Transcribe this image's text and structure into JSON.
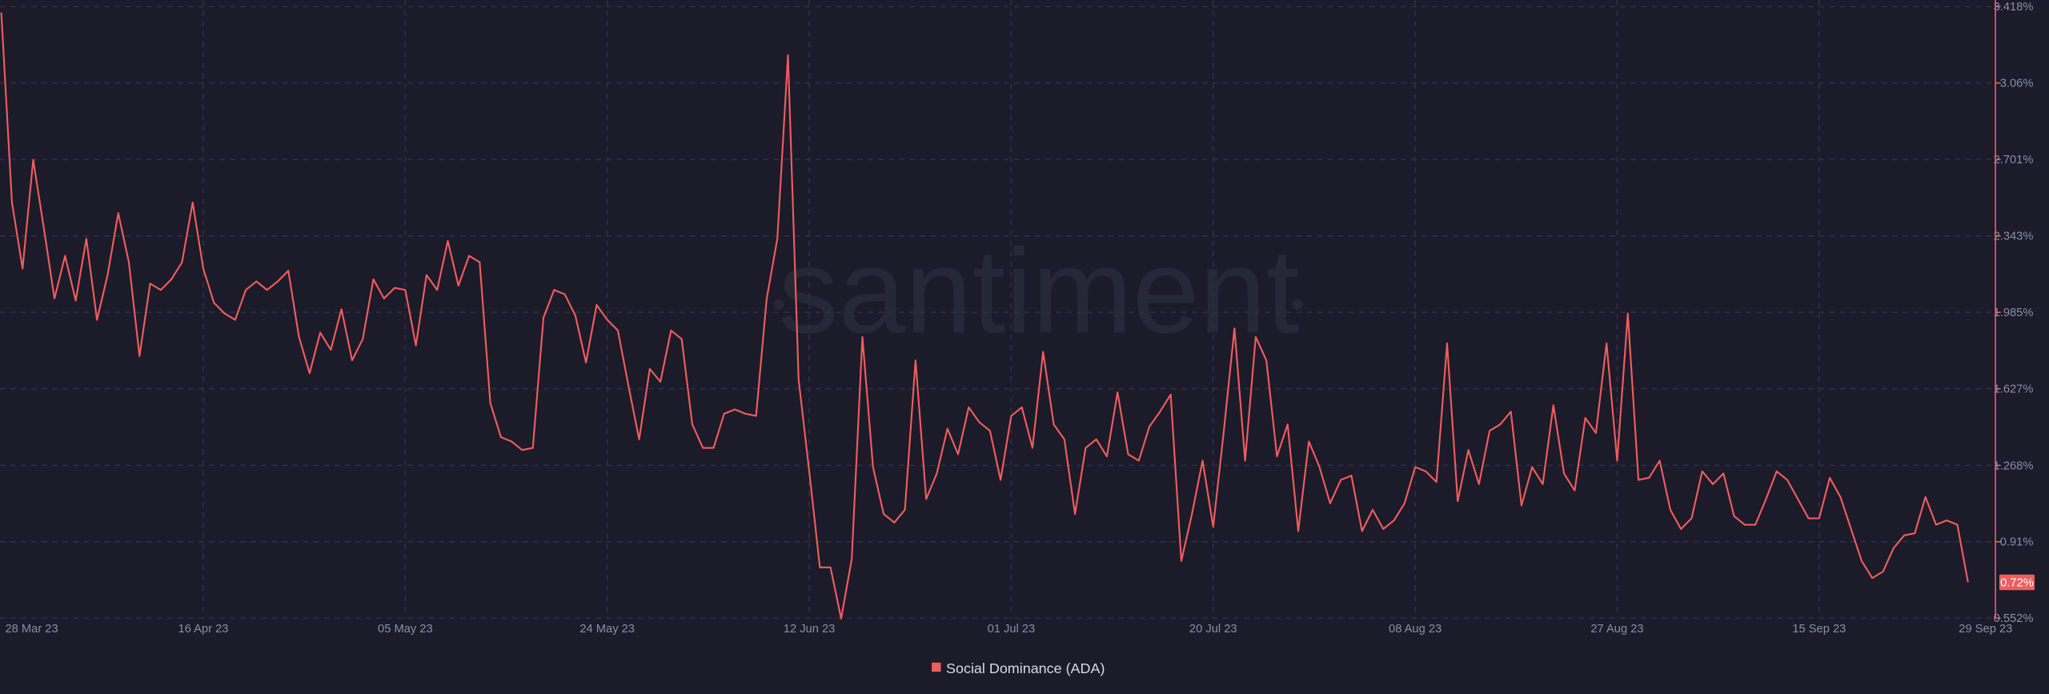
{
  "chart_data": {
    "type": "line",
    "watermark": "santiment",
    "xlim": [
      "28 Mar 23",
      "29 Sep 23"
    ],
    "xticks": [
      "28 Mar 23",
      "16 Apr 23",
      "05 May 23",
      "24 May 23",
      "12 Jun 23",
      "01 Jul 23",
      "20 Jul 23",
      "08 Aug 23",
      "27 Aug 23",
      "15 Sep 23",
      "29 Sep 23"
    ],
    "ylim": [
      0.552,
      3.418
    ],
    "yticks": [
      {
        "value": 0.552,
        "label": "0.552%"
      },
      {
        "value": 0.91,
        "label": "0.91%"
      },
      {
        "value": 1.268,
        "label": "1.268%"
      },
      {
        "value": 1.627,
        "label": "1.627%"
      },
      {
        "value": 1.985,
        "label": "1.985%"
      },
      {
        "value": 2.343,
        "label": "2.343%"
      },
      {
        "value": 2.701,
        "label": "2.701%"
      },
      {
        "value": 3.06,
        "label": "3.06%"
      },
      {
        "value": 3.418,
        "label": "3.418%"
      }
    ],
    "grid": true,
    "legend": "bottom",
    "current_value_label": "0.72%",
    "series": [
      {
        "name": "Social Dominance (ADA)",
        "color": "#f25c5c",
        "values": [
          3.39,
          2.5,
          2.19,
          2.7,
          2.38,
          2.05,
          2.25,
          2.04,
          2.33,
          1.95,
          2.16,
          2.45,
          2.22,
          1.78,
          2.12,
          2.09,
          2.14,
          2.22,
          2.5,
          2.19,
          2.03,
          1.98,
          1.95,
          2.09,
          2.13,
          2.09,
          2.13,
          2.18,
          1.87,
          1.7,
          1.89,
          1.81,
          2.0,
          1.76,
          1.86,
          2.14,
          2.05,
          2.1,
          2.09,
          1.83,
          2.16,
          2.09,
          2.32,
          2.11,
          2.25,
          2.22,
          1.56,
          1.4,
          1.38,
          1.34,
          1.35,
          1.96,
          2.09,
          2.07,
          1.97,
          1.75,
          2.02,
          1.95,
          1.9,
          1.64,
          1.39,
          1.72,
          1.66,
          1.9,
          1.86,
          1.46,
          1.35,
          1.35,
          1.51,
          1.53,
          1.51,
          1.5,
          2.05,
          2.33,
          3.19,
          1.67,
          1.24,
          0.79,
          0.79,
          0.55,
          0.83,
          1.87,
          1.26,
          1.04,
          1.0,
          1.06,
          1.76,
          1.11,
          1.23,
          1.44,
          1.32,
          1.54,
          1.47,
          1.43,
          1.2,
          1.5,
          1.54,
          1.35,
          1.8,
          1.46,
          1.39,
          1.04,
          1.35,
          1.39,
          1.31,
          1.61,
          1.32,
          1.29,
          1.45,
          1.52,
          1.6,
          0.82,
          1.04,
          1.29,
          0.98,
          1.43,
          1.91,
          1.29,
          1.87,
          1.76,
          1.31,
          1.46,
          0.96,
          1.38,
          1.26,
          1.09,
          1.2,
          1.22,
          0.96,
          1.06,
          0.97,
          1.01,
          1.09,
          1.26,
          1.24,
          1.19,
          1.84,
          1.1,
          1.34,
          1.18,
          1.43,
          1.46,
          1.52,
          1.08,
          1.26,
          1.18,
          1.55,
          1.23,
          1.15,
          1.49,
          1.42,
          1.84,
          1.29,
          1.98,
          1.2,
          1.21,
          1.29,
          1.06,
          0.97,
          1.02,
          1.24,
          1.18,
          1.23,
          1.03,
          0.99,
          0.99,
          1.11,
          1.24,
          1.2,
          1.11,
          1.02,
          1.02,
          1.21,
          1.12,
          0.97,
          0.82,
          0.74,
          0.77,
          0.88,
          0.94,
          0.95,
          1.12,
          0.99,
          1.01,
          0.99,
          0.72
        ]
      }
    ]
  }
}
